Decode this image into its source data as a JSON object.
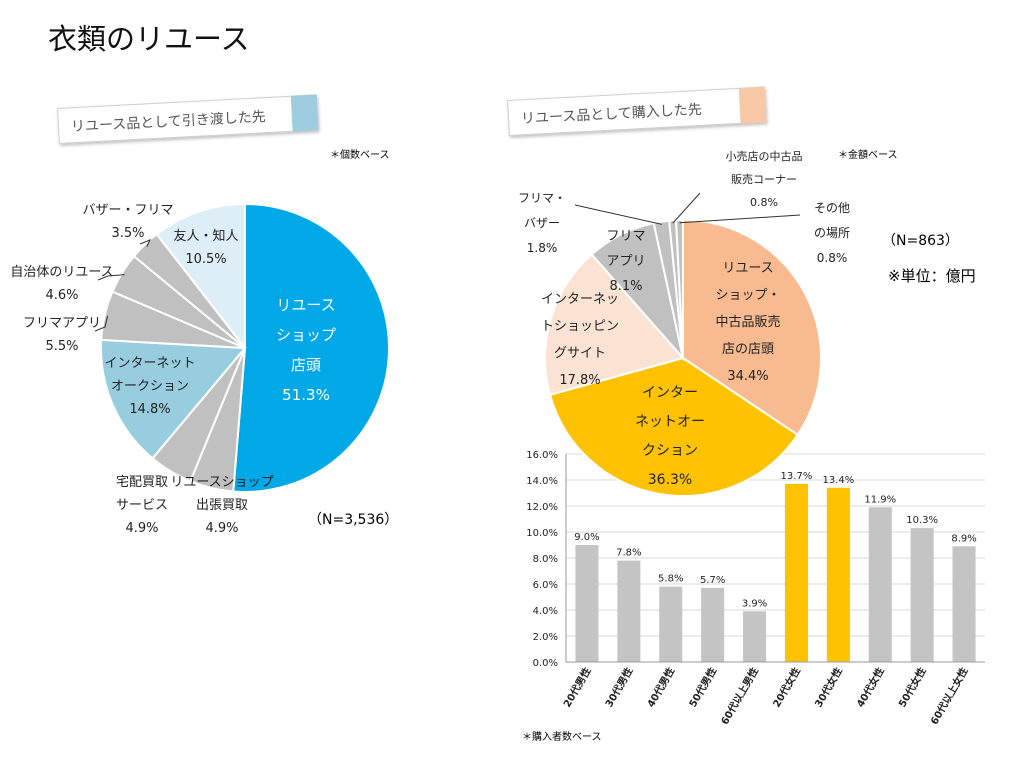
{
  "title": "衣類のリユース",
  "left_panel": {
    "banner": "リユース品として引き渡した先",
    "note": "＊個数ベース",
    "n_label": "（N=3,536）"
  },
  "right_panel": {
    "banner": "リユース品として購入した先",
    "note": "＊金額ベース",
    "n_label": "（N=863）",
    "unit_label": "※単位：億円",
    "bar_note": "＊購入者数ベース"
  },
  "colors": {
    "reuse_blue": "#00a8e8",
    "light_blue": "#98cde0",
    "pale_blue": "#deeef6",
    "gray": "#c0c0c0",
    "peach": "#f8bb8f",
    "gold": "#fec200",
    "cream": "#fbe3d4",
    "bar_gray": "#c4c4c4",
    "bar_gold": "#fec200"
  },
  "chart_data": [
    {
      "type": "pie",
      "labels": [
        "リユースショップ店頭",
        "リユースショップ出張買取",
        "宅配買取サービス",
        "インターネットオークション",
        "フリマアプリ",
        "自治体のリユース",
        "バザー・フリマ",
        "友人・知人"
      ],
      "label_lines": [
        [
          "リユース",
          "ショップ",
          "店頭"
        ],
        [
          "リユースショップ",
          "出張買取"
        ],
        [
          "宅配買取",
          "サービス"
        ],
        [
          "インターネット",
          "オークション"
        ],
        [
          "フリマアプリ"
        ],
        [
          "自治体のリユース"
        ],
        [
          "バザー・フリマ"
        ],
        [
          "友人・知人"
        ]
      ],
      "values": [
        51.3,
        4.9,
        4.9,
        14.8,
        5.5,
        4.6,
        3.5,
        10.5
      ],
      "value_labels": [
        "51.3%",
        "4.9%",
        "4.9%",
        "14.8%",
        "5.5%",
        "4.6%",
        "3.5%",
        "10.5%"
      ],
      "colors": [
        "#00a8e8",
        "#c0c0c0",
        "#c0c0c0",
        "#98cde0",
        "#c0c0c0",
        "#c0c0c0",
        "#c0c0c0",
        "#deeef6"
      ],
      "start": "12 o'clock, clockwise"
    },
    {
      "type": "pie",
      "labels": [
        "リユースショップ・中古品販売店の店頭",
        "インターネットオークション",
        "インターネットショッピングサイト",
        "フリマアプリ",
        "フリマ・バザー",
        "小売店の中古品販売コーナー",
        "その他の場所"
      ],
      "label_lines": [
        [
          "リユース",
          "ショップ・",
          "中古品販売",
          "店の店頭"
        ],
        [
          "インター",
          "ネットオー",
          "クション"
        ],
        [
          "インターネッ",
          "トショッピン",
          "グサイト"
        ],
        [
          "フリマ",
          "アプリ"
        ],
        [
          "フリマ・",
          "バザー"
        ],
        [
          "小売店の中古品",
          "販売コーナー"
        ],
        [
          "その他",
          "の場所"
        ]
      ],
      "values": [
        34.4,
        36.3,
        17.8,
        8.1,
        1.8,
        0.8,
        0.8
      ],
      "value_labels": [
        "34.4%",
        "36.3%",
        "17.8%",
        "8.1%",
        "1.8%",
        "0.8%",
        "0.8%"
      ],
      "colors": [
        "#f8bb8f",
        "#fec200",
        "#fbe3d4",
        "#c0c0c0",
        "#c0c0c0",
        "#c0c0c0",
        "#c0c0c0"
      ],
      "start": "12 o'clock, clockwise"
    },
    {
      "type": "bar",
      "categories": [
        "20代男性",
        "30代男性",
        "40代男性",
        "50代男性",
        "60代以上男性",
        "20代女性",
        "30代女性",
        "40代女性",
        "50代女性",
        "60代以上女性"
      ],
      "values": [
        9.0,
        7.8,
        5.8,
        5.7,
        3.9,
        13.7,
        13.4,
        11.9,
        10.3,
        8.9
      ],
      "value_labels": [
        "9.0%",
        "7.8%",
        "5.8%",
        "5.7%",
        "3.9%",
        "13.7%",
        "13.4%",
        "11.9%",
        "10.3%",
        "8.9%"
      ],
      "highlight": [
        false,
        false,
        false,
        false,
        false,
        true,
        true,
        false,
        false,
        false
      ],
      "ylim": [
        0,
        16
      ],
      "yticks": [
        0,
        2,
        4,
        6,
        8,
        10,
        12,
        14,
        16
      ],
      "ytick_labels": [
        "0.0%",
        "2.0%",
        "4.0%",
        "6.0%",
        "8.0%",
        "10.0%",
        "12.0%",
        "14.0%",
        "16.0%"
      ],
      "grid": true
    }
  ]
}
